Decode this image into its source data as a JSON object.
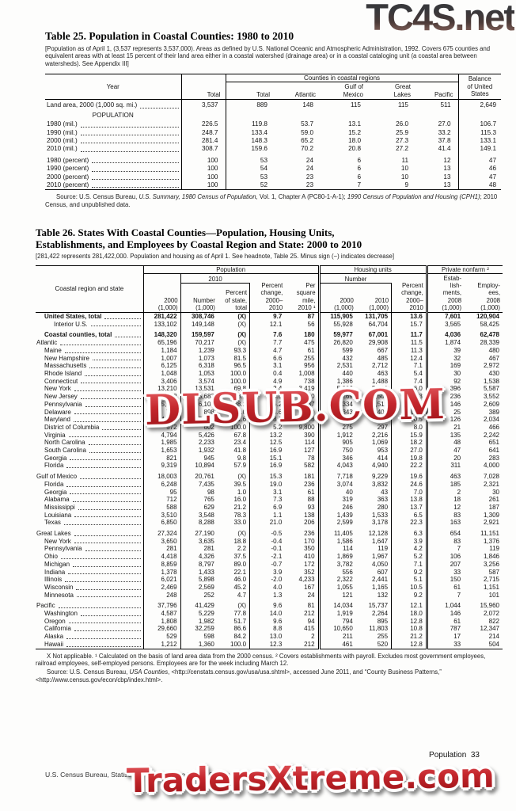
{
  "watermarks": {
    "top": "TC4S.net",
    "middle": "DLSUB.COM",
    "bottom": "TradersXtreme.com",
    "red_color": "#c5272d",
    "dark_color": "#38383b"
  },
  "page": {
    "running_head": "Population  33",
    "footer": "U.S. Census Bureau, Statistical Abstract of the United States: 2012"
  },
  "table25": {
    "title": "Table 25. Population in Coastal Counties: 1980 to 2010",
    "headnote": "[Population as of April 1, (3,537 represents 3,537,000). Areas as defined by U.S. National Oceanic and Atmospheric Administration, 1992. Covers 675 counties and equivalent areas with at least 15 percent of their land area either in a coastal watershed (drainage area) or in a coastal cataloging unit (a coastal area between watersheds). See Appendix III]",
    "header": {
      "stub": "Year",
      "total": "Total",
      "group": "Counties in coastal regions",
      "cols": [
        "Total",
        "Atlantic",
        "Gulf of\nMexico",
        "Great\nLakes",
        "Pacific"
      ],
      "balance": "Balance\nof United\nStates"
    },
    "rows": [
      {
        "label": "Land area, 2000 (1,000 sq. mi.)",
        "values": [
          "3,537",
          "889",
          "148",
          "115",
          "115",
          "511",
          "2,649"
        ]
      },
      {
        "subhead": "POPULATION"
      },
      {
        "label": "1980 (mil.)",
        "values": [
          "226.5",
          "119.8",
          "53.7",
          "13.1",
          "26.0",
          "27.0",
          "106.7"
        ]
      },
      {
        "label": "1990 (mil.)",
        "values": [
          "248.7",
          "133.4",
          "59.0",
          "15.2",
          "25.9",
          "33.2",
          "115.3"
        ]
      },
      {
        "label": "2000 (mil.)",
        "values": [
          "281.4",
          "148.3",
          "65.2",
          "18.0",
          "27.3",
          "37.8",
          "133.1"
        ]
      },
      {
        "label": "2010 (mil.)",
        "values": [
          "308.7",
          "159.6",
          "70.2",
          "20.8",
          "27.2",
          "41.4",
          "149.1"
        ]
      },
      {
        "label": "1980 (percent)",
        "gap": true,
        "values": [
          "100",
          "53",
          "24",
          "6",
          "11",
          "12",
          "47"
        ]
      },
      {
        "label": "1990 (percent)",
        "values": [
          "100",
          "54",
          "24",
          "6",
          "10",
          "13",
          "46"
        ]
      },
      {
        "label": "2000 (percent)",
        "values": [
          "100",
          "53",
          "23",
          "6",
          "10",
          "13",
          "47"
        ]
      },
      {
        "label": "2010 (percent)",
        "values": [
          "100",
          "52",
          "23",
          "7",
          "9",
          "13",
          "48"
        ]
      }
    ],
    "source_segments": [
      {
        "t": "Source: U.S. Census Bureau, "
      },
      {
        "t": "U.S. Summary, 1980 Census of Population",
        "i": true
      },
      {
        "t": ", Vol. 1, Chapter A (PC80-1-A-1); "
      },
      {
        "t": "1990 Census of Population and Housing (CPH1)",
        "i": true
      },
      {
        "t": "; 2010 Census, and unpublished data."
      }
    ]
  },
  "table26": {
    "title": "Table 26. States With Coastal Counties—Population, Housing Units,\nEstablishments, and Employees by Coastal Region and State: 2000 to 2010",
    "headnote": "[281,422 represents 281,422,000. Population and housing as of April 1. See headnote, Table 25. Minus sign (−) indicates decrease]",
    "header": {
      "stub": "Coastal region and state",
      "population_group": "Population",
      "housing_group": "Housing units",
      "private_group": "Private nonfarm ²",
      "sub_2010": "2010",
      "sub_number": "Number",
      "c_pop_2000": "2000\n(1,000)",
      "c_number": "Number\n(1,000)",
      "c_pct_state": "Percent\nof state,\ntotal",
      "c_pct_change": "Percent\nchange,\n2000–\n2010",
      "c_per_sq_mile": "Per\nsquare\nmile,\n2010 ¹",
      "c_h2000": "2000\n(1,000)",
      "c_h2010": "2010\n(1,000)",
      "c_h_pct_change": "Percent\nchange,\n2000–\n2010",
      "c_establishments": "Estab-\nlish-\nments,\n2008\n(1,000)",
      "c_employees": "Employ-\nees,\n2008\n(1,000)"
    },
    "rows": [
      {
        "label": "United States, total",
        "indent": 1,
        "bold": true,
        "values": [
          "281,422",
          "308,746",
          "(X)",
          "9.7",
          "87",
          "115,905",
          "131,705",
          "13.6",
          "7,601",
          "120,904"
        ]
      },
      {
        "label": "Interior U.S.",
        "indent": 2,
        "values": [
          "133,102",
          "149,148",
          "(X)",
          "12.1",
          "56",
          "55,928",
          "64,704",
          "15.7",
          "3,565",
          "58,425"
        ]
      },
      {
        "label": "Coastal counties, total",
        "indent": 1,
        "bold": true,
        "gap": true,
        "values": [
          "148,320",
          "159,597",
          "(X)",
          "7.6",
          "180",
          "59,977",
          "67,001",
          "11.7",
          "4,036",
          "62,478"
        ]
      },
      {
        "label": "Atlantic",
        "indent": 0,
        "values": [
          "65,196",
          "70,217",
          "(X)",
          "7.7",
          "475",
          "26,820",
          "29,908",
          "11.5",
          "1,874",
          "28,339"
        ]
      },
      {
        "label": "Maine",
        "indent": 1,
        "values": [
          "1,184",
          "1,239",
          "93.3",
          "4.7",
          "61",
          "599",
          "667",
          "11.3",
          "39",
          "480"
        ]
      },
      {
        "label": "New Hampshire",
        "indent": 1,
        "values": [
          "1,007",
          "1,073",
          "81.5",
          "6.6",
          "255",
          "432",
          "485",
          "12.4",
          "32",
          "467"
        ]
      },
      {
        "label": "Massachusetts",
        "indent": 1,
        "values": [
          "6,125",
          "6,318",
          "96.5",
          "3.1",
          "956",
          "2,531",
          "2,712",
          "7.1",
          "169",
          "2,972"
        ]
      },
      {
        "label": "Rhode Island",
        "indent": 1,
        "values": [
          "1,048",
          "1,053",
          "100.0",
          "0.4",
          "1,008",
          "440",
          "463",
          "5.4",
          "30",
          "430"
        ]
      },
      {
        "label": "Connecticut",
        "indent": 1,
        "values": [
          "3,406",
          "3,574",
          "100.0",
          "4.9",
          "738",
          "1,386",
          "1,488",
          "7.4",
          "92",
          "1,538"
        ]
      },
      {
        "label": "New York",
        "indent": 1,
        "values": [
          "13,210",
          "13,531",
          "69.8",
          "2.4",
          "3,419",
          "5,096",
          "5,401",
          "6.0",
          "396",
          "5,587"
        ]
      },
      {
        "label": "New Jersey",
        "indent": 1,
        "values": [
          "8,312",
          "8,683",
          "98.8",
          "4.5",
          "1,250",
          "3,269",
          "3,509",
          "7.3",
          "236",
          "3,552"
        ]
      },
      {
        "label": "Pennsylvania",
        "indent": 1,
        "values": [
          "5,750",
          "6,108",
          "48.1",
          "6.2",
          "887",
          "2,334",
          "2,512",
          "7.6",
          "146",
          "2,609"
        ]
      },
      {
        "label": "Delaware",
        "indent": 1,
        "values": [
          "784",
          "898",
          "100.0",
          "14.6",
          "460",
          "343",
          "406",
          "18.3",
          "25",
          "389"
        ]
      },
      {
        "label": "Maryland",
        "indent": 1,
        "values": [
          "4,865",
          "5,288",
          "91.6",
          "8.7",
          "698",
          "1,970",
          "2,176",
          "10.5",
          "126",
          "2,034"
        ]
      },
      {
        "label": "District of Columbia",
        "indent": 1,
        "values": [
          "572",
          "602",
          "100.0",
          "5.2",
          "9,800",
          "275",
          "297",
          "8.0",
          "21",
          "466"
        ]
      },
      {
        "label": "Virginia",
        "indent": 1,
        "values": [
          "4,794",
          "5,426",
          "67.8",
          "13.2",
          "390",
          "1,912",
          "2,216",
          "15.9",
          "135",
          "2,242"
        ]
      },
      {
        "label": "North Carolina",
        "indent": 1,
        "values": [
          "1,985",
          "2,233",
          "23.4",
          "12.5",
          "114",
          "905",
          "1,069",
          "18.2",
          "48",
          "651"
        ]
      },
      {
        "label": "South Carolina",
        "indent": 1,
        "values": [
          "1,653",
          "1,932",
          "41.8",
          "16.9",
          "127",
          "750",
          "953",
          "27.0",
          "47",
          "641"
        ]
      },
      {
        "label": "Georgia",
        "indent": 1,
        "values": [
          "821",
          "945",
          "9.8",
          "15.1",
          "78",
          "346",
          "414",
          "19.8",
          "20",
          "283"
        ]
      },
      {
        "label": "Florida",
        "indent": 1,
        "values": [
          "9,319",
          "10,894",
          "57.9",
          "16.9",
          "582",
          "4,043",
          "4,940",
          "22.2",
          "311",
          "4,000"
        ]
      },
      {
        "label": "Gulf of Mexico",
        "indent": 0,
        "gap": true,
        "values": [
          "18,003",
          "20,761",
          "(X)",
          "15.3",
          "181",
          "7,718",
          "9,229",
          "19.6",
          "463",
          "7,028"
        ]
      },
      {
        "label": "Florida",
        "indent": 1,
        "values": [
          "6,248",
          "7,435",
          "39.5",
          "19.0",
          "236",
          "3,074",
          "3,832",
          "24.6",
          "185",
          "2,321"
        ]
      },
      {
        "label": "Georgia",
        "indent": 1,
        "values": [
          "95",
          "98",
          "1.0",
          "3.1",
          "61",
          "40",
          "43",
          "7.0",
          "2",
          "30"
        ]
      },
      {
        "label": "Alabama",
        "indent": 1,
        "values": [
          "712",
          "765",
          "16.0",
          "7.3",
          "88",
          "319",
          "363",
          "13.8",
          "18",
          "261"
        ]
      },
      {
        "label": "Mississippi",
        "indent": 1,
        "values": [
          "588",
          "629",
          "21.2",
          "6.9",
          "93",
          "246",
          "280",
          "13.7",
          "12",
          "187"
        ]
      },
      {
        "label": "Louisiana",
        "indent": 1,
        "values": [
          "3,510",
          "3,548",
          "78.3",
          "1.1",
          "138",
          "1,439",
          "1,533",
          "6.5",
          "83",
          "1,309"
        ]
      },
      {
        "label": "Texas",
        "indent": 1,
        "values": [
          "6,850",
          "8,288",
          "33.0",
          "21.0",
          "206",
          "2,599",
          "3,178",
          "22.3",
          "163",
          "2,921"
        ]
      },
      {
        "label": "Great Lakes",
        "indent": 0,
        "gap": true,
        "values": [
          "27,324",
          "27,190",
          "(X)",
          "-0.5",
          "236",
          "11,405",
          "12,128",
          "6.3",
          "654",
          "11,151"
        ]
      },
      {
        "label": "New York",
        "indent": 1,
        "values": [
          "3,650",
          "3,635",
          "18.8",
          "-0.4",
          "170",
          "1,586",
          "1,647",
          "3.9",
          "83",
          "1,376"
        ]
      },
      {
        "label": "Pennsylvania",
        "indent": 1,
        "values": [
          "281",
          "281",
          "2.2",
          "-0.1",
          "350",
          "114",
          "119",
          "4.2",
          "7",
          "119"
        ]
      },
      {
        "label": "Ohio",
        "indent": 1,
        "values": [
          "4,418",
          "4,326",
          "37.5",
          "-2.1",
          "410",
          "1,869",
          "1,967",
          "5.2",
          "106",
          "1,846"
        ]
      },
      {
        "label": "Michigan",
        "indent": 1,
        "values": [
          "8,859",
          "8,797",
          "89.0",
          "-0.7",
          "172",
          "3,782",
          "4,050",
          "7.1",
          "207",
          "3,256"
        ]
      },
      {
        "label": "Indiana",
        "indent": 1,
        "values": [
          "1,378",
          "1,433",
          "22.1",
          "3.9",
          "352",
          "556",
          "607",
          "9.2",
          "33",
          "587"
        ]
      },
      {
        "label": "Illinois",
        "indent": 1,
        "values": [
          "6,021",
          "5,898",
          "46.0",
          "-2.0",
          "4,233",
          "2,322",
          "2,441",
          "5.1",
          "150",
          "2,715"
        ]
      },
      {
        "label": "Wisconsin",
        "indent": 1,
        "values": [
          "2,469",
          "2,569",
          "45.2",
          "4.0",
          "167",
          "1,055",
          "1,165",
          "10.5",
          "61",
          "1,151"
        ]
      },
      {
        "label": "Minnesota",
        "indent": 1,
        "values": [
          "248",
          "252",
          "4.7",
          "1.3",
          "24",
          "121",
          "132",
          "9.2",
          "7",
          "101"
        ]
      },
      {
        "label": "Pacific",
        "indent": 0,
        "gap": true,
        "values": [
          "37,796",
          "41,429",
          "(X)",
          "9.6",
          "81",
          "14,034",
          "15,737",
          "12.1",
          "1,044",
          "15,960"
        ]
      },
      {
        "label": "Washington",
        "indent": 1,
        "values": [
          "4,587",
          "5,229",
          "77.8",
          "14.0",
          "212",
          "1,919",
          "2,264",
          "18.0",
          "146",
          "2,072"
        ]
      },
      {
        "label": "Oregon",
        "indent": 1,
        "values": [
          "1,808",
          "1,982",
          "51.7",
          "9.6",
          "94",
          "794",
          "895",
          "12.8",
          "61",
          "822"
        ]
      },
      {
        "label": "California",
        "indent": 1,
        "values": [
          "29,660",
          "32,259",
          "86.6",
          "8.8",
          "415",
          "10,650",
          "11,803",
          "10.8",
          "787",
          "12,347"
        ]
      },
      {
        "label": "Alaska",
        "indent": 1,
        "values": [
          "529",
          "598",
          "84.2",
          "13.0",
          "2",
          "211",
          "255",
          "21.2",
          "17",
          "214"
        ]
      },
      {
        "label": "Hawaii",
        "indent": 1,
        "values": [
          "1,212",
          "1,360",
          "100.0",
          "12.3",
          "212",
          "461",
          "520",
          "12.8",
          "33",
          "504"
        ]
      }
    ],
    "footnote": "X Not applicable. ¹ Calculated on the basis of land area data from the 2000 census. ² Covers establishments with payroll. Excludes most government employees, railroad employees, self-employed persons. Employees are for the week including March 12.",
    "source_segments": [
      {
        "t": "Source: U.S. Census Bureau, "
      },
      {
        "t": "USA Counties",
        "i": true
      },
      {
        "t": ", <http://censtats.census.gov/usa/usa.shtml>, accessed June 2011, and “County Business Patterns,” <http://www.census.gov/econ/cbp/index.html>."
      }
    ]
  }
}
